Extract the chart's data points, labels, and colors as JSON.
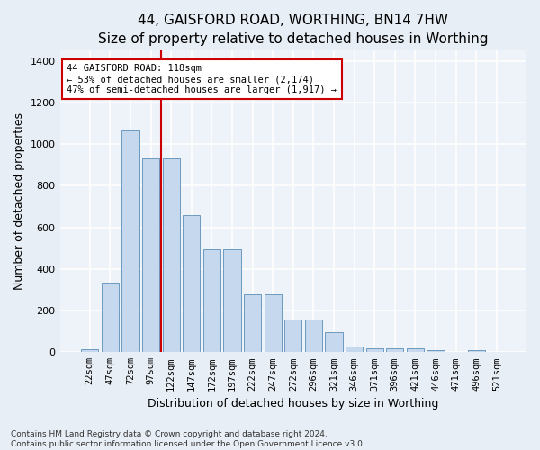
{
  "title": "44, GAISFORD ROAD, WORTHING, BN14 7HW",
  "subtitle": "Size of property relative to detached houses in Worthing",
  "xlabel": "Distribution of detached houses by size in Worthing",
  "ylabel": "Number of detached properties",
  "categories": [
    "22sqm",
    "47sqm",
    "72sqm",
    "97sqm",
    "122sqm",
    "147sqm",
    "172sqm",
    "197sqm",
    "222sqm",
    "247sqm",
    "272sqm",
    "296sqm",
    "321sqm",
    "346sqm",
    "371sqm",
    "396sqm",
    "421sqm",
    "446sqm",
    "471sqm",
    "496sqm",
    "521sqm"
  ],
  "values": [
    15,
    335,
    1065,
    930,
    930,
    660,
    495,
    495,
    280,
    280,
    155,
    155,
    95,
    28,
    20,
    18,
    18,
    10,
    0,
    10,
    0
  ],
  "bar_color": "#c5d8ee",
  "bar_edge_color": "#5b8db8",
  "vline_color": "#cc0000",
  "vline_x_index": 3.5,
  "annotation_text": "44 GAISFORD ROAD: 118sqm\n← 53% of detached houses are smaller (2,174)\n47% of semi-detached houses are larger (1,917) →",
  "annotation_box_color": "#ffffff",
  "annotation_box_edge": "#cc0000",
  "ylim": [
    0,
    1450
  ],
  "yticks": [
    0,
    200,
    400,
    600,
    800,
    1000,
    1200,
    1400
  ],
  "footer": "Contains HM Land Registry data © Crown copyright and database right 2024.\nContains public sector information licensed under the Open Government Licence v3.0.",
  "bg_color": "#e8eef5",
  "plot_bg_color": "#eef3f9",
  "grid_color": "#ffffff",
  "title_fontsize": 11,
  "label_fontsize": 9,
  "tick_fontsize": 7.5,
  "bar_width": 0.85,
  "figwidth": 6.0,
  "figheight": 5.0,
  "dpi": 100
}
